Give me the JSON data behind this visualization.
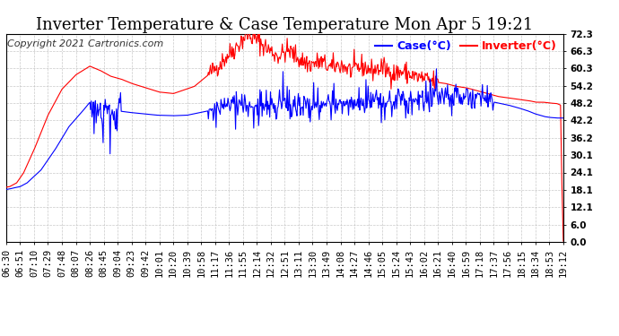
{
  "title": "Inverter Temperature & Case Temperature Mon Apr 5 19:21",
  "copyright": "Copyright 2021 Cartronics.com",
  "legend_case": "Case(°C)",
  "legend_inverter": "Inverter(°C)",
  "case_color": "#0000ff",
  "inverter_color": "#ff0000",
  "bg_color": "#ffffff",
  "plot_bg_color": "#ffffff",
  "grid_color": "#bbbbbb",
  "ylim": [
    0.0,
    72.3
  ],
  "yticks": [
    0.0,
    6.0,
    12.1,
    18.1,
    24.1,
    30.1,
    36.2,
    42.2,
    48.2,
    54.2,
    60.3,
    66.3,
    72.3
  ],
  "xtick_labels": [
    "06:30",
    "06:51",
    "07:10",
    "07:29",
    "07:48",
    "08:07",
    "08:26",
    "08:45",
    "09:04",
    "09:23",
    "09:42",
    "10:01",
    "10:20",
    "10:39",
    "10:58",
    "11:17",
    "11:36",
    "11:55",
    "12:14",
    "12:32",
    "12:51",
    "13:11",
    "13:30",
    "13:49",
    "14:08",
    "14:27",
    "14:46",
    "15:05",
    "15:24",
    "15:43",
    "16:02",
    "16:21",
    "16:40",
    "16:59",
    "17:18",
    "17:37",
    "17:56",
    "18:15",
    "18:34",
    "18:53",
    "19:12"
  ],
  "title_fontsize": 13,
  "copyright_fontsize": 8,
  "legend_fontsize": 9,
  "tick_fontsize": 7.5,
  "line_width": 0.8
}
